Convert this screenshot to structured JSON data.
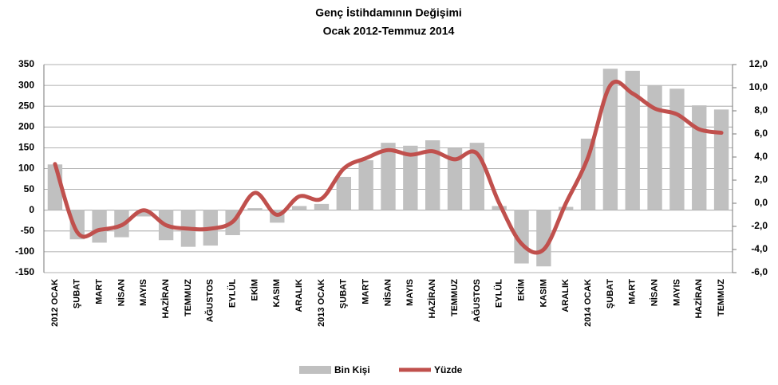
{
  "chart_data": {
    "type": "bar-line",
    "title": "Genç İstihdamının Değişimi",
    "subtitle": "Ocak 2012-Temmuz 2014",
    "categories": [
      "2012 OCAK",
      "ŞUBAT",
      "MART",
      "NİSAN",
      "MAYIS",
      "HAZİRAN",
      "TEMMUZ",
      "AĞUSTOS",
      "EYLÜL",
      "EKİM",
      "KASIM",
      "ARALIK",
      "2013 OCAK",
      "ŞUBAT",
      "MART",
      "NİSAN",
      "MAYIS",
      "HAZİRAN",
      "TEMMUZ",
      "AĞUSTOS",
      "EYLÜL",
      "EKİM",
      "KASIM",
      "ARALIK",
      "2014 OCAK",
      "ŞUBAT",
      "MART",
      "NİSAN",
      "MAYIS",
      "HAZİRAN",
      "TEMMUZ"
    ],
    "series": [
      {
        "name": "Bin Kişi",
        "type": "bar",
        "color": "#c0c0c0",
        "values": [
          110,
          -70,
          -78,
          -65,
          -15,
          -72,
          -88,
          -85,
          -60,
          5,
          -30,
          10,
          15,
          80,
          120,
          162,
          155,
          168,
          150,
          162,
          10,
          -128,
          -135,
          8,
          172,
          340,
          335,
          300,
          292,
          252,
          242
        ]
      },
      {
        "name": "Yüzde",
        "type": "line",
        "axis": "y2",
        "color": "#c0504d",
        "values": [
          3.4,
          -2.5,
          -2.3,
          -1.9,
          -0.6,
          -1.9,
          -2.2,
          -2.2,
          -1.6,
          0.9,
          -1.0,
          0.6,
          0.4,
          3.0,
          3.9,
          4.6,
          4.2,
          4.5,
          3.8,
          4.3,
          0,
          -3.5,
          -4.0,
          0,
          4.0,
          10.2,
          9.5,
          8.2,
          7.7,
          6.4,
          6.1
        ]
      }
    ],
    "ylim": [
      -150,
      350
    ],
    "yticks": [
      -150,
      -100,
      -50,
      0,
      50,
      100,
      150,
      200,
      250,
      300,
      350
    ],
    "y2lim": [
      -6,
      12
    ],
    "y2ticks": [
      {
        "value": -6,
        "label": "-6,0"
      },
      {
        "value": -4,
        "label": "-4,0"
      },
      {
        "value": -2,
        "label": "-2,0"
      },
      {
        "value": 0,
        "label": "0,0"
      },
      {
        "value": 2,
        "label": "2,0"
      },
      {
        "value": 4,
        "label": "4,0"
      },
      {
        "value": 6,
        "label": "6,0"
      },
      {
        "value": 8,
        "label": "8,0"
      },
      {
        "value": 10,
        "label": "10,0"
      },
      {
        "value": 12,
        "label": "12,0"
      }
    ],
    "grid": true,
    "legend": "bottom"
  }
}
